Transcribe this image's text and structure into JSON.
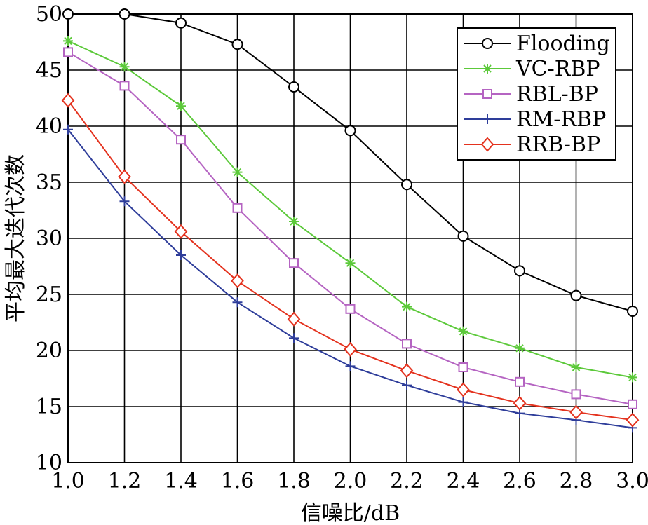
{
  "chart_data": {
    "type": "line",
    "xlabel": "信噪比/dB",
    "ylabel": "平均最大迭代次数",
    "xlim": [
      1.0,
      3.0
    ],
    "ylim": [
      10,
      50
    ],
    "grid": true,
    "legend_position": "top-right",
    "x": [
      1.0,
      1.2,
      1.4,
      1.6,
      1.8,
      2.0,
      2.2,
      2.4,
      2.6,
      2.8,
      3.0
    ],
    "x_tick_labels": [
      "1.0",
      "1.2",
      "1.4",
      "1.6",
      "1.8",
      "2.0",
      "2.2",
      "2.4",
      "2.6",
      "2.8",
      "3.0"
    ],
    "y_ticks": [
      10,
      15,
      20,
      25,
      30,
      35,
      40,
      45,
      50
    ],
    "y_tick_labels": [
      "10",
      "15",
      "20",
      "25",
      "30",
      "35",
      "40",
      "45",
      "50"
    ],
    "series": [
      {
        "name": "Flooding",
        "color": "#000000",
        "marker": "circle",
        "values": [
          50.0,
          50.0,
          49.2,
          47.3,
          43.5,
          39.6,
          34.8,
          30.2,
          27.1,
          24.9,
          23.5
        ]
      },
      {
        "name": "VC-RBP",
        "color": "#5cc93a",
        "marker": "asterisk",
        "values": [
          47.6,
          45.3,
          41.8,
          35.9,
          31.5,
          27.8,
          23.9,
          21.7,
          20.2,
          18.5,
          17.6
        ]
      },
      {
        "name": "RBL-BP",
        "color": "#b564c2",
        "marker": "square",
        "values": [
          46.6,
          43.6,
          38.8,
          32.7,
          27.8,
          23.7,
          20.6,
          18.5,
          17.2,
          16.1,
          15.2
        ]
      },
      {
        "name": "RM-RBP",
        "color": "#2e3d9a",
        "marker": "plus",
        "values": [
          39.7,
          33.3,
          28.5,
          24.3,
          21.1,
          18.6,
          16.9,
          15.4,
          14.4,
          13.8,
          13.1
        ]
      },
      {
        "name": "RRB-BP",
        "color": "#e4321e",
        "marker": "diamond",
        "values": [
          42.3,
          35.5,
          30.6,
          26.2,
          22.8,
          20.1,
          18.2,
          16.5,
          15.3,
          14.5,
          13.8
        ]
      }
    ]
  }
}
